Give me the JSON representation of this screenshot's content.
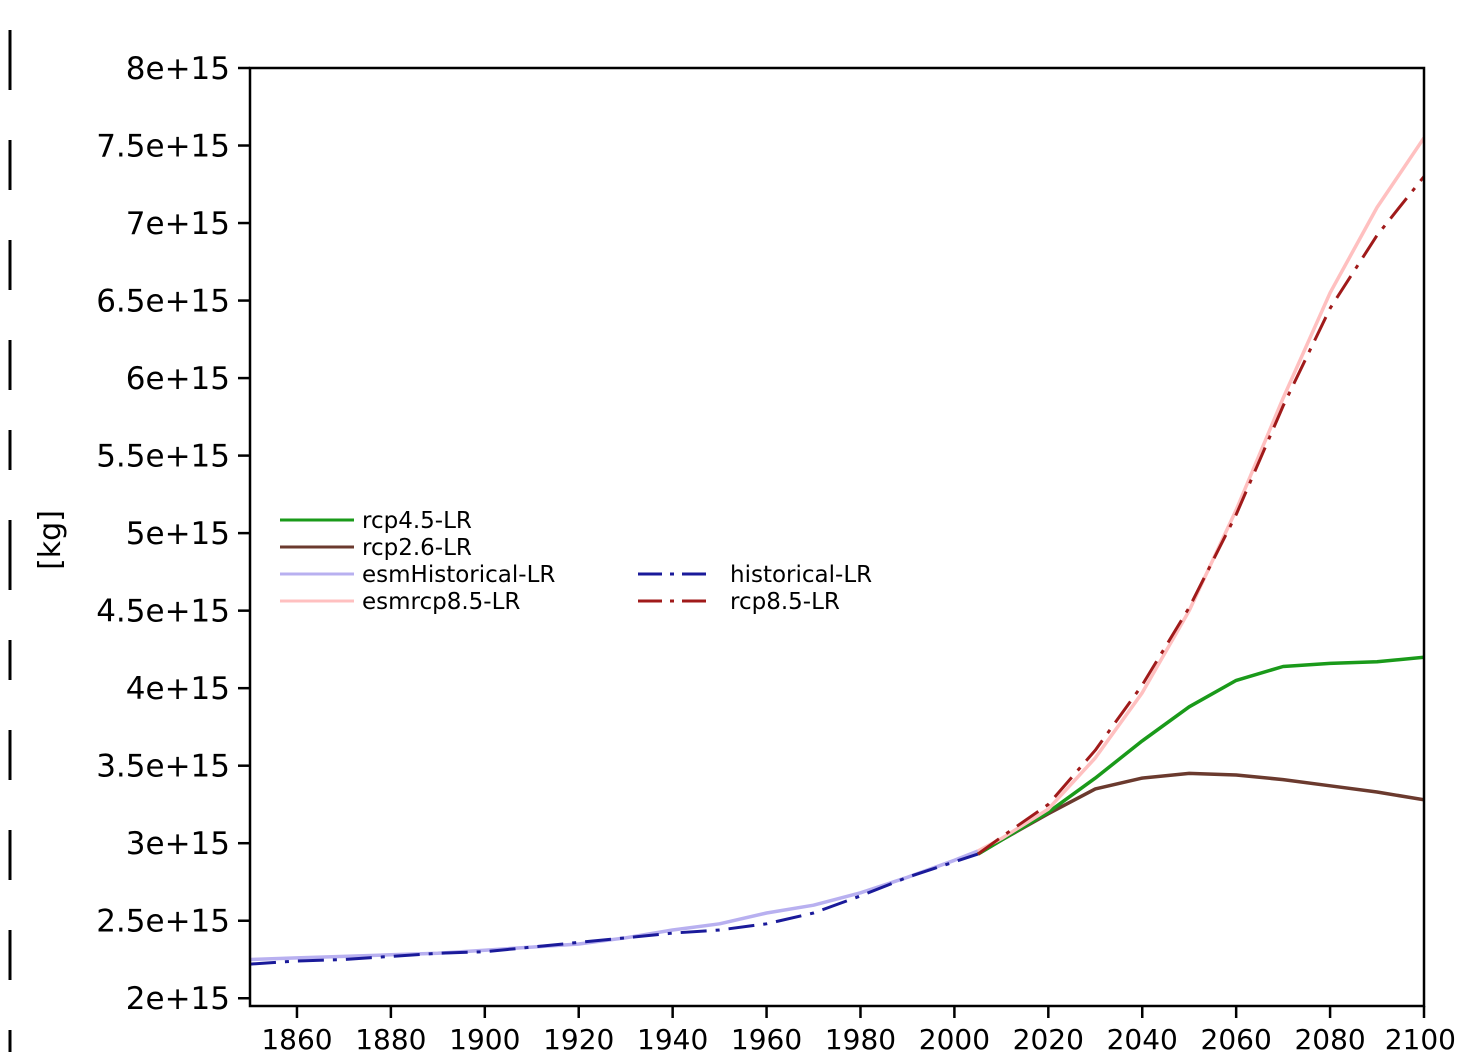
{
  "chart_data": {
    "type": "line",
    "title": "",
    "xlabel": "",
    "ylabel": "[kg]",
    "xlim": [
      1850,
      2100
    ],
    "ylim": [
      1950000000000000.0,
      8000000000000000.0
    ],
    "x_ticks": [
      1860,
      1880,
      1900,
      1920,
      1940,
      1960,
      1980,
      2000,
      2020,
      2040,
      2060,
      2080,
      2100
    ],
    "x_tick_labels": [
      "1860",
      "1880",
      "1900",
      "1920",
      "1940",
      "1960",
      "1980",
      "2000",
      "2020",
      "2040",
      "2060",
      "2080",
      "2100"
    ],
    "y_ticks": [
      2000000000000000.0,
      2500000000000000.0,
      3000000000000000.0,
      3500000000000000.0,
      4000000000000000.0,
      4500000000000000.0,
      5000000000000000.0,
      5500000000000000.0,
      6000000000000000.0,
      6500000000000000.0,
      7000000000000000.0,
      7500000000000000.0,
      8000000000000000.0
    ],
    "y_tick_labels": [
      "2e+15",
      "2.5e+15",
      "3e+15",
      "3.5e+15",
      "4e+15",
      "4.5e+15",
      "5e+15",
      "5.5e+15",
      "6e+15",
      "6.5e+15",
      "7e+15",
      "7.5e+15",
      "8e+15"
    ],
    "grid": false,
    "legend_position": "center-left",
    "series": [
      {
        "name": "esmHistorical-LR",
        "color": "#b8b0f0",
        "style": "solid",
        "x": [
          1850,
          1860,
          1870,
          1880,
          1890,
          1900,
          1910,
          1920,
          1930,
          1940,
          1950,
          1960,
          1970,
          1980,
          1990,
          2000,
          2005
        ],
        "y": [
          2250000000000000.0,
          2260000000000000.0,
          2270000000000000.0,
          2280000000000000.0,
          2290000000000000.0,
          2310000000000000.0,
          2330000000000000.0,
          2350000000000000.0,
          2390000000000000.0,
          2440000000000000.0,
          2480000000000000.0,
          2550000000000000.0,
          2600000000000000.0,
          2680000000000000.0,
          2780000000000000.0,
          2890000000000000.0,
          2950000000000000.0
        ]
      },
      {
        "name": "historical-LR",
        "color": "#1a1a9a",
        "style": "dashdot",
        "x": [
          1850,
          1860,
          1870,
          1880,
          1890,
          1900,
          1910,
          1920,
          1930,
          1940,
          1950,
          1960,
          1970,
          1980,
          1990,
          2000,
          2005
        ],
        "y": [
          2220000000000000.0,
          2240000000000000.0,
          2250000000000000.0,
          2270000000000000.0,
          2290000000000000.0,
          2300000000000000.0,
          2330000000000000.0,
          2360000000000000.0,
          2390000000000000.0,
          2420000000000000.0,
          2440000000000000.0,
          2480000000000000.0,
          2550000000000000.0,
          2660000000000000.0,
          2780000000000000.0,
          2880000000000000.0,
          2930000000000000.0
        ]
      },
      {
        "name": "rcp4.5-LR",
        "color": "#1a9a1a",
        "style": "solid",
        "x": [
          2005,
          2010,
          2020,
          2030,
          2040,
          2050,
          2060,
          2070,
          2080,
          2090,
          2100
        ],
        "y": [
          2930000000000000.0,
          3020000000000000.0,
          3200000000000000.0,
          3420000000000000.0,
          3660000000000000.0,
          3880000000000000.0,
          4050000000000000.0,
          4140000000000000.0,
          4160000000000000.0,
          4170000000000000.0,
          4200000000000000.0
        ]
      },
      {
        "name": "rcp2.6-LR",
        "color": "#6b3a2e",
        "style": "solid",
        "x": [
          2005,
          2010,
          2020,
          2030,
          2040,
          2050,
          2060,
          2070,
          2080,
          2090,
          2100
        ],
        "y": [
          2930000000000000.0,
          3020000000000000.0,
          3190000000000000.0,
          3350000000000000.0,
          3420000000000000.0,
          3450000000000000.0,
          3440000000000000.0,
          3410000000000000.0,
          3370000000000000.0,
          3330000000000000.0,
          3280000000000000.0
        ]
      },
      {
        "name": "esmrcp8.5-LR",
        "color": "#ffc0c0",
        "style": "solid",
        "x": [
          2005,
          2010,
          2020,
          2030,
          2040,
          2050,
          2060,
          2070,
          2080,
          2090,
          2100
        ],
        "y": [
          2950000000000000.0,
          3030000000000000.0,
          3220000000000000.0,
          3550000000000000.0,
          3970000000000000.0,
          4500000000000000.0,
          5150000000000000.0,
          5870000000000000.0,
          6550000000000000.0,
          7100000000000000.0,
          7550000000000000.0
        ]
      },
      {
        "name": "rcp8.5-LR",
        "color": "#a01a1a",
        "style": "dashdot",
        "x": [
          2005,
          2010,
          2020,
          2030,
          2040,
          2050,
          2060,
          2070,
          2080,
          2090,
          2100
        ],
        "y": [
          2930000000000000.0,
          3040000000000000.0,
          3250000000000000.0,
          3600000000000000.0,
          4020000000000000.0,
          4520000000000000.0,
          5120000000000000.0,
          5820000000000000.0,
          6450000000000000.0,
          6920000000000000.0,
          7300000000000000.0
        ]
      }
    ],
    "legend_columns": [
      [
        "rcp4.5-LR",
        "rcp2.6-LR",
        "esmHistorical-LR",
        "esmrcp8.5-LR"
      ],
      [
        "historical-LR",
        "rcp8.5-LR"
      ]
    ]
  },
  "axis_color": "#000000",
  "background": "#ffffff"
}
